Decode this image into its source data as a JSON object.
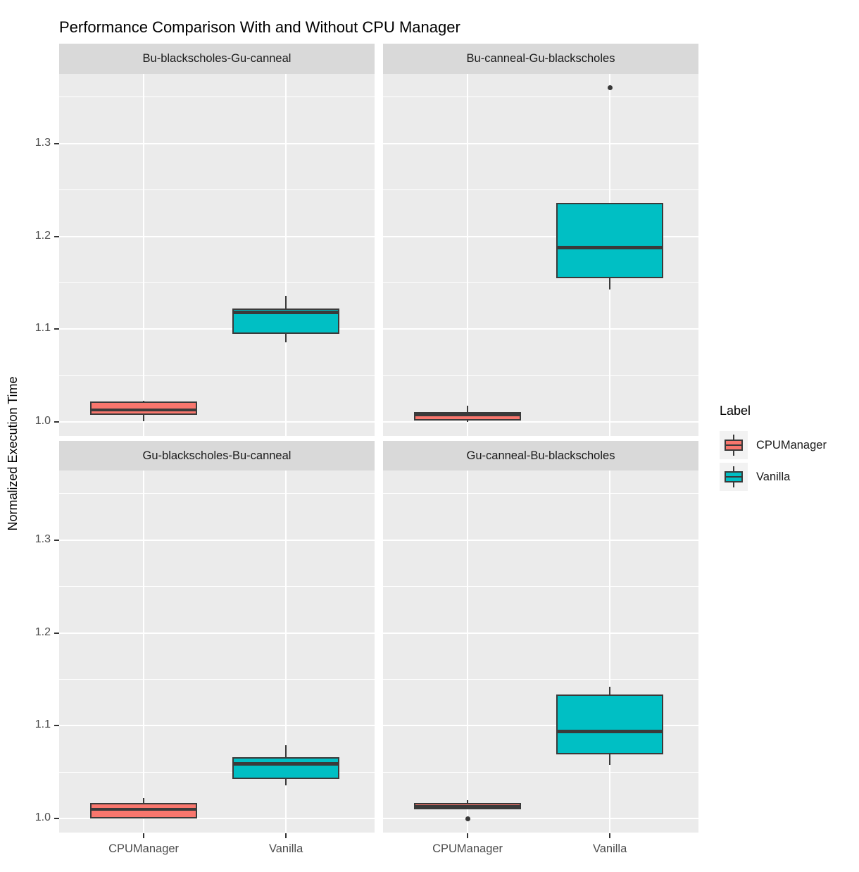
{
  "title": "Performance Comparison With and Without CPU Manager",
  "axes": {
    "y_label": "Normalized Execution Time",
    "x_categories": [
      "CPUManager",
      "Vanilla"
    ]
  },
  "legend": {
    "title": "Label",
    "items": [
      {
        "label": "CPUManager",
        "color": "#F8766D"
      },
      {
        "label": "Vanilla",
        "color": "#00BFC4"
      }
    ]
  },
  "colors": {
    "box_outline": "#3A3A3A",
    "panel_background": "#EBEBEB",
    "strip_background": "#D9D9D9",
    "gridline": "#FFFFFF",
    "axis_text": "#4D4D4D"
  },
  "chart_data": {
    "type": "boxplot",
    "layout": "2x2-facets",
    "title": "Performance Comparison With and Without CPU Manager",
    "ylabel": "Normalized Execution Time",
    "xlabel": "",
    "y_axis": {
      "ticks": [
        1.0,
        1.1,
        1.2,
        1.3
      ],
      "tick_labels": [
        "1.0",
        "1.1",
        "1.2",
        "1.3"
      ],
      "minor_ticks": [
        1.05,
        1.15,
        1.25,
        1.35
      ],
      "range": [
        0.985,
        1.375
      ],
      "grid": true
    },
    "x_categories": [
      "CPUManager",
      "Vanilla"
    ],
    "facets": [
      {
        "title": "Bu-blackscholes-Gu-canneal",
        "boxes": [
          {
            "category": "CPUManager",
            "label": "CPUManager",
            "whisker_low": 1.001,
            "q1": 1.008,
            "median": 1.013,
            "q3": 1.022,
            "whisker_high": 1.023,
            "outliers": []
          },
          {
            "category": "Vanilla",
            "label": "Vanilla",
            "whisker_low": 1.086,
            "q1": 1.095,
            "median": 1.118,
            "q3": 1.122,
            "whisker_high": 1.136,
            "outliers": []
          }
        ]
      },
      {
        "title": "Bu-canneal-Gu-blackscholes",
        "boxes": [
          {
            "category": "CPUManager",
            "label": "CPUManager",
            "whisker_low": 1.0,
            "q1": 1.002,
            "median": 1.008,
            "q3": 1.011,
            "whisker_high": 1.018,
            "outliers": []
          },
          {
            "category": "Vanilla",
            "label": "Vanilla",
            "whisker_low": 1.143,
            "q1": 1.155,
            "median": 1.188,
            "q3": 1.236,
            "whisker_high": 1.236,
            "outliers": [
              1.36
            ]
          }
        ]
      },
      {
        "title": "Gu-blackscholes-Bu-canneal",
        "boxes": [
          {
            "category": "CPUManager",
            "label": "CPUManager",
            "whisker_low": 1.0,
            "q1": 1.0,
            "median": 1.01,
            "q3": 1.017,
            "whisker_high": 1.022,
            "outliers": []
          },
          {
            "category": "Vanilla",
            "label": "Vanilla",
            "whisker_low": 1.036,
            "q1": 1.043,
            "median": 1.059,
            "q3": 1.066,
            "whisker_high": 1.079,
            "outliers": []
          }
        ]
      },
      {
        "title": "Gu-canneal-Bu-blackscholes",
        "boxes": [
          {
            "category": "CPUManager",
            "label": "CPUManager",
            "whisker_low": 1.01,
            "q1": 1.01,
            "median": 1.013,
            "q3": 1.017,
            "whisker_high": 1.02,
            "outliers": [
              1.0
            ]
          },
          {
            "category": "Vanilla",
            "label": "Vanilla",
            "whisker_low": 1.058,
            "q1": 1.069,
            "median": 1.094,
            "q3": 1.134,
            "whisker_high": 1.142,
            "outliers": []
          }
        ]
      }
    ]
  }
}
